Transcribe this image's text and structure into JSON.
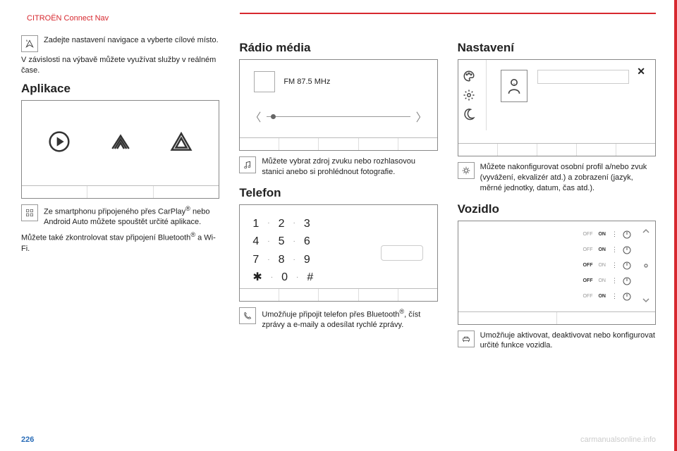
{
  "colors": {
    "accent": "#d7282f",
    "text": "#222222",
    "border": "#888888",
    "muted": "#bbbbbb"
  },
  "header": "CITROËN Connect Nav",
  "page_number": "226",
  "watermark": "carmanualsonline.info",
  "col1": {
    "nav": {
      "icon": "nav-arrow-icon",
      "text": "Zadejte nastavení navigace a vyberte cílové místo."
    },
    "nav_sub": "V závislosti na výbavě můžete využívat služby v reálném čase.",
    "apps_title": "Aplikace",
    "apps_para_lead": "Ze smartphonu připojeného přes CarPlay",
    "apps_para_mid": " nebo Android Auto můžete spouštět určité aplikace.",
    "apps_para2_a": "Můžete také zkontrolovat stav připojení Bluetooth",
    "apps_para2_b": " a Wi-Fi."
  },
  "col2": {
    "radio_title": "Rádio média",
    "radio_freq": "FM  87.5 MHz",
    "radio_para": "Můžete vybrat zdroj zvuku nebo rozhlasovou stanici anebo si prohlédnout fotografie.",
    "phone_title": "Telefon",
    "dial_rows": [
      [
        "1",
        "2",
        "3"
      ],
      [
        "4",
        "5",
        "6"
      ],
      [
        "7",
        "8",
        "9"
      ],
      [
        "✱",
        "0",
        "#"
      ]
    ],
    "phone_para_a": "Umožňuje připojit telefon přes Bluetooth",
    "phone_para_b": ", číst zprávy a e-maily a odesílat rychlé zprávy."
  },
  "col3": {
    "settings_title": "Nastavení",
    "settings_para": "Můžete nakonfigurovat osobní profil a/nebo zvuk (vyvážení, ekvalizér atd.) a zobrazení (jazyk, měrné jednotky, datum, čas atd.).",
    "vehicle_title": "Vozidlo",
    "vehicle_toggles": [
      {
        "off": "OFF",
        "on": "ON",
        "active": "on"
      },
      {
        "off": "OFF",
        "on": "ON",
        "active": "on"
      },
      {
        "off": "OFF",
        "on": "ON",
        "active": "off"
      },
      {
        "off": "OFF",
        "on": "ON",
        "active": "off"
      },
      {
        "off": "OFF",
        "on": "ON",
        "active": "on"
      }
    ],
    "vehicle_para": "Umožňuje aktivovat, deaktivovat nebo konfigurovat určité funkce vozidla."
  }
}
